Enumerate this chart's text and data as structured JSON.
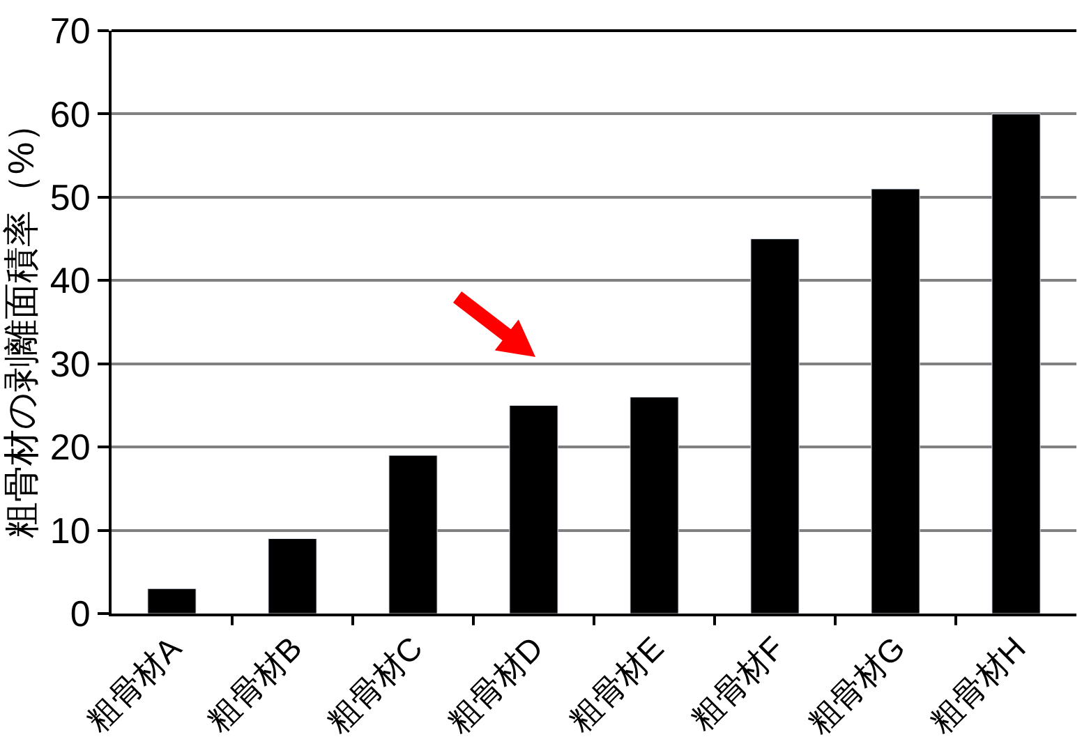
{
  "chart_data": {
    "type": "bar",
    "categories": [
      "粗骨材A",
      "粗骨材B",
      "粗骨材C",
      "粗骨材D",
      "粗骨材E",
      "粗骨材F",
      "粗骨材G",
      "粗骨材H"
    ],
    "values": [
      3,
      9,
      19,
      25,
      26,
      45,
      51,
      60
    ],
    "color": "#000000",
    "ylabel": "粗骨材の剥離面積率（%）",
    "ylim": [
      0,
      70
    ],
    "yticks": [
      0,
      10,
      20,
      30,
      40,
      50,
      60,
      70
    ],
    "grid": "y",
    "legend": false
  }
}
